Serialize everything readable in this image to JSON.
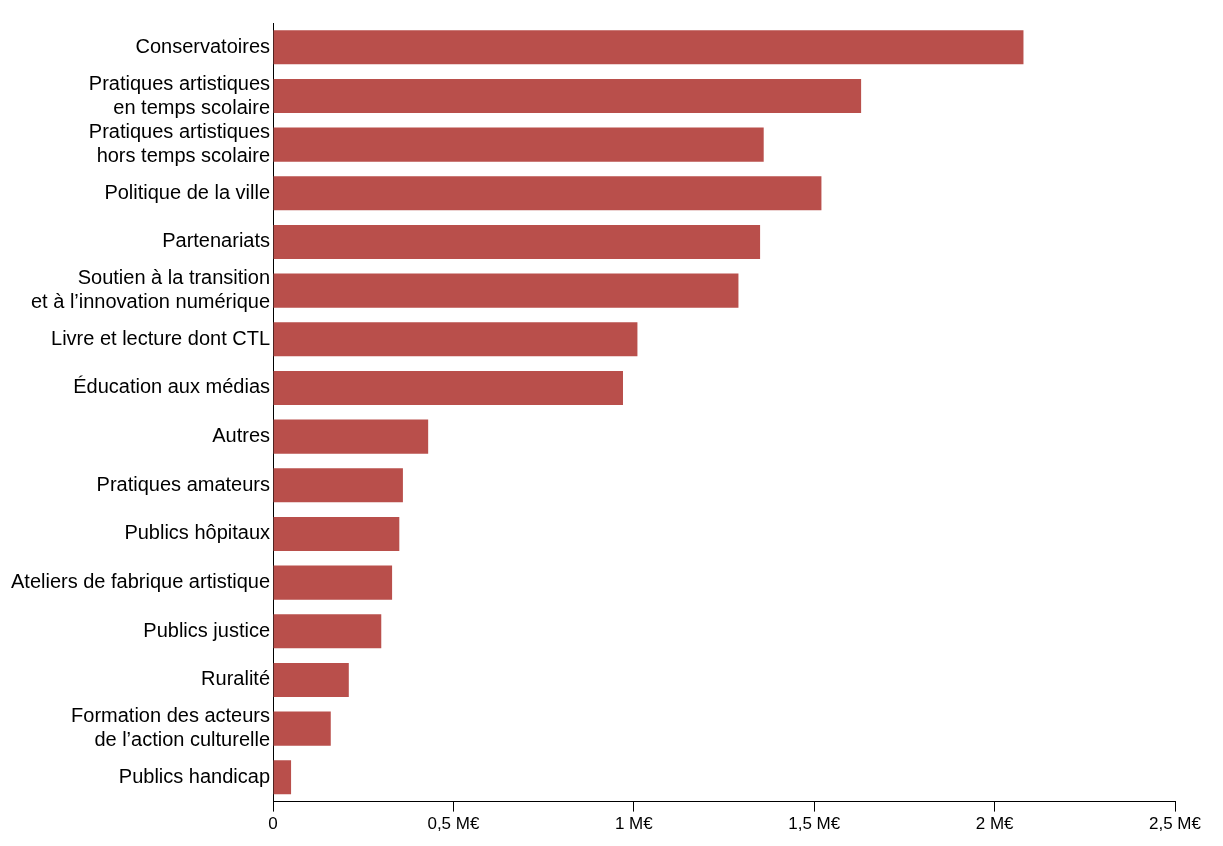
{
  "chart_data": {
    "type": "bar",
    "orientation": "horizontal",
    "color": "#b94f4b",
    "grid": false,
    "categories": [
      "Conservatoires",
      "Pratiques artistiques\nen temps scolaire",
      "Pratiques artistiques\nhors temps scolaire",
      "Politique de la ville",
      "Partenariats",
      "Soutien à la transition\net à l’innovation numérique",
      "Livre et lecture dont CTL",
      "Éducation aux médias",
      "Autres",
      "Pratiques amateurs",
      "Publics hôpitaux",
      "Ateliers de fabrique artistique",
      "Publics justice",
      "Ruralité",
      "Formation des acteurs\nde l’action culturelle",
      "Publics handicap"
    ],
    "values": [
      2.08,
      1.63,
      1.36,
      1.52,
      1.35,
      1.29,
      1.01,
      0.97,
      0.43,
      0.36,
      0.35,
      0.33,
      0.3,
      0.21,
      0.16,
      0.05
    ],
    "xlim": [
      0,
      2.5
    ],
    "xticks": [
      0,
      {
        "value": 0.5,
        "label": "0,5 M€"
      },
      {
        "value": 1,
        "label": "1 M€"
      },
      {
        "value": 1.5,
        "label": "1,5 M€"
      },
      {
        "value": 2,
        "label": "2 M€"
      },
      {
        "value": 2.5,
        "label": "2,5 M€"
      }
    ]
  }
}
